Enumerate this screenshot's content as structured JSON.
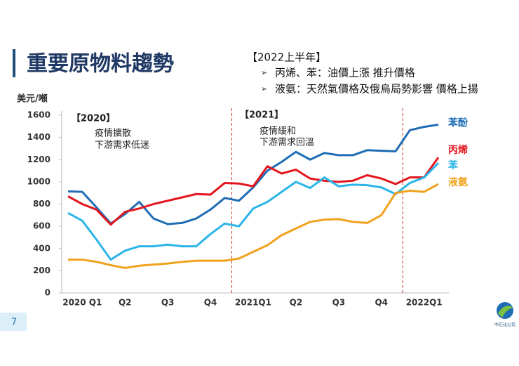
{
  "chart_data": {
    "type": "line",
    "title": "重要原物料趨勢",
    "notes": {
      "title": "【2022上半年】",
      "items": [
        "丙烯、苯：油價上漲 推升價格",
        "液氨：天然氣價格及俄烏局勢影響 價格上揚"
      ]
    },
    "y_label": "美元/噸",
    "annotations": [
      {
        "title": "【2020】",
        "lines": [
          "疫情擴散",
          "下游需求低迷"
        ]
      },
      {
        "title": "【2021】",
        "lines": [
          "疫情緩和",
          "下游需求回溫"
        ]
      }
    ],
    "categories": [
      null,
      "2020 Q1",
      null,
      null,
      "Q2",
      null,
      null,
      "Q3",
      null,
      null,
      "Q4",
      null,
      null,
      "2021Q1",
      null,
      null,
      "Q2",
      null,
      null,
      "Q3",
      null,
      null,
      "Q4",
      null,
      null,
      "2022Q1",
      null
    ],
    "series": [
      {
        "name": "苯酚",
        "color": "#1f6db5",
        "values": [
          915,
          910,
          770,
          625,
          710,
          820,
          670,
          620,
          630,
          670,
          750,
          855,
          830,
          950,
          1100,
          1180,
          1270,
          1200,
          1260,
          1240,
          1240,
          1285,
          1280,
          1275,
          1465,
          1495,
          1515
        ]
      },
      {
        "name": "丙烯",
        "color": "#e3161e",
        "values": [
          870,
          800,
          750,
          615,
          730,
          760,
          800,
          830,
          860,
          890,
          885,
          990,
          985,
          960,
          1140,
          1075,
          1110,
          1030,
          1010,
          1000,
          1010,
          1060,
          1030,
          980,
          1040,
          1040,
          1220
        ]
      },
      {
        "name": "苯",
        "color": "#2bb5e8",
        "values": [
          720,
          650,
          480,
          300,
          380,
          420,
          420,
          435,
          420,
          420,
          530,
          625,
          600,
          760,
          820,
          910,
          1000,
          945,
          1040,
          960,
          975,
          970,
          950,
          890,
          990,
          1040,
          1170
        ]
      },
      {
        "name": "液氨",
        "color": "#f0a21e",
        "values": [
          300,
          300,
          280,
          250,
          225,
          245,
          255,
          265,
          280,
          290,
          290,
          290,
          310,
          370,
          430,
          520,
          580,
          640,
          660,
          665,
          640,
          630,
          700,
          900,
          920,
          910,
          980
        ]
      }
    ],
    "ylim": [
      0,
      1600
    ],
    "yticks": [
      0,
      200,
      400,
      600,
      800,
      1000,
      1200,
      1400,
      1600
    ],
    "grid": false
  },
  "slide": {
    "page_number": "7",
    "logo_text": "中石化公司"
  }
}
